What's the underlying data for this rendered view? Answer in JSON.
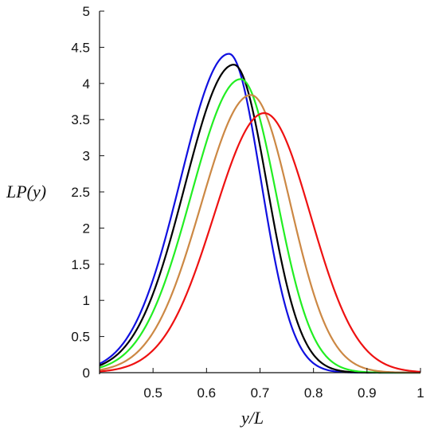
{
  "chart_data": {
    "type": "line",
    "xlabel": "y/L",
    "ylabel": "LP(y)",
    "xlim": [
      0.4,
      1.0
    ],
    "ylim": [
      0,
      5
    ],
    "x_ticks": [
      "0.5",
      "0.6",
      "0.7",
      "0.8",
      "0.9",
      "1"
    ],
    "y_ticks": [
      "0",
      "0.5",
      "1",
      "1.5",
      "2",
      "2.5",
      "3",
      "3.5",
      "4",
      "4.5",
      "5"
    ],
    "grid": false,
    "legend": "none",
    "series": [
      {
        "color": "#1010e0",
        "peak_x": 0.642,
        "peak_y": 4.41,
        "sigma_left": 0.0905,
        "sigma_right": 0.0595
      },
      {
        "color": "#000000",
        "peak_x": 0.651,
        "peak_y": 4.26,
        "sigma_left": 0.0915,
        "sigma_right": 0.0625
      },
      {
        "color": "#22ee22",
        "peak_x": 0.664,
        "peak_y": 4.06,
        "sigma_left": 0.0925,
        "sigma_right": 0.0665
      },
      {
        "color": "#cc8844",
        "peak_x": 0.683,
        "peak_y": 3.84,
        "sigma_left": 0.093,
        "sigma_right": 0.074
      },
      {
        "color": "#ee1111",
        "peak_x": 0.708,
        "peak_y": 3.59,
        "sigma_left": 0.094,
        "sigma_right": 0.0865
      }
    ]
  }
}
